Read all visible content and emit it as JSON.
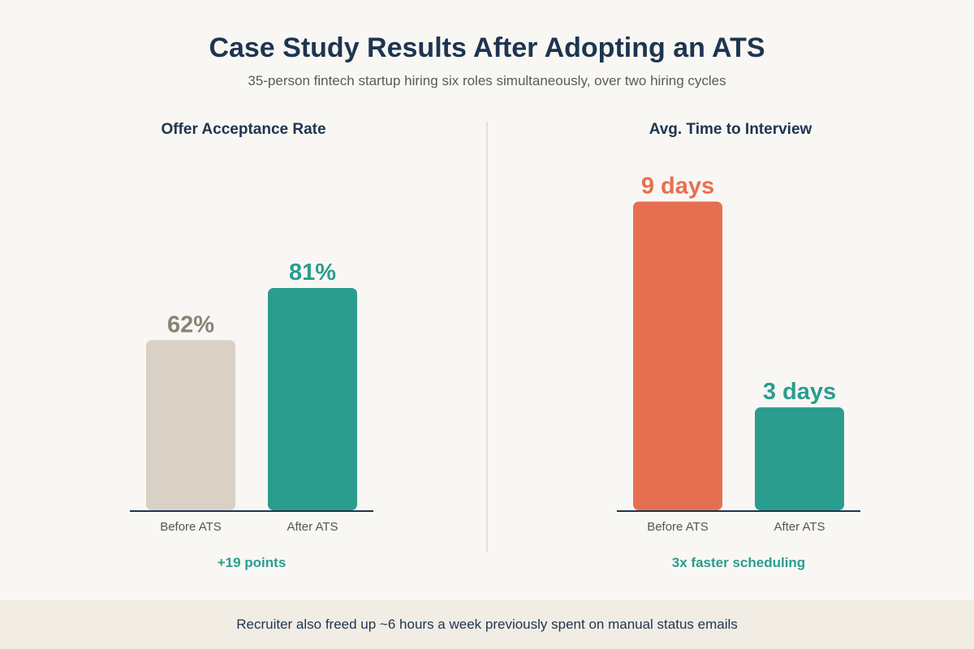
{
  "header": {
    "title": "Case Study Results After Adopting an ATS",
    "subtitle": "35-person fintech startup hiring six roles simultaneously, over two hiring cycles"
  },
  "chart_data": [
    {
      "type": "bar",
      "title": "Offer Acceptance Rate",
      "categories": [
        "Before ATS",
        "After ATS"
      ],
      "values": [
        62,
        81
      ],
      "value_labels": [
        "62%",
        "81%"
      ],
      "colors": [
        "#d9d1c5",
        "#2a9d8f"
      ],
      "label_colors": [
        "#8a8275",
        "#2a9d8f"
      ],
      "ylim": [
        0,
        115
      ],
      "annotation": "+19 points"
    },
    {
      "type": "bar",
      "title": "Avg. Time to Interview",
      "categories": [
        "Before ATS",
        "After ATS"
      ],
      "values": [
        9,
        3
      ],
      "value_labels": [
        "9 days",
        "3 days"
      ],
      "colors": [
        "#e76f51",
        "#2a9d8f"
      ],
      "label_colors": [
        "#e76f51",
        "#2a9d8f"
      ],
      "ylim": [
        0,
        9.2
      ],
      "annotation": "3x faster scheduling"
    }
  ],
  "footer": {
    "note": "Recruiter also freed up ~6 hours a week previously spent on manual status emails"
  }
}
